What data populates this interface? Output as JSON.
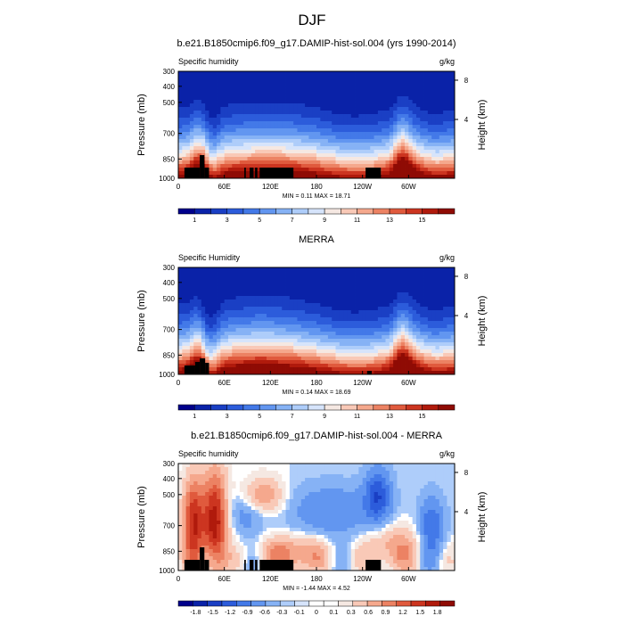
{
  "figure": {
    "title": "DJF"
  },
  "chart_data": [
    {
      "type": "heatmap",
      "title": "b.e21.B1850cmip6.f09_g17.DAMIP-hist-sol.004 (yrs 1990-2014)",
      "left_string": "Specific humidity",
      "right_string": "g/kg",
      "ylabel": "Pressure (mb)",
      "y2label": "Height (km)",
      "x_ticks": [
        "0",
        "60E",
        "120E",
        "180",
        "120W",
        "60W"
      ],
      "y_ticks": [
        "300",
        "400",
        "500",
        "700",
        "850",
        "1000"
      ],
      "y2_ticks": [
        "8",
        "4"
      ],
      "stats": "MIN =   0.11   MAX =  18.71",
      "colorbar_labels": [
        "1",
        "3",
        "5",
        "7",
        "9",
        "11",
        "13",
        "15"
      ],
      "palette": [
        "#00008b",
        "#0a22a8",
        "#1a3fc4",
        "#2c5cdb",
        "#4379e8",
        "#6296f0",
        "#86b2f5",
        "#aecdfa",
        "#d6e4fb",
        "#f5e8e2",
        "#f9c9b7",
        "#f5a88d",
        "#ec8263",
        "#e05a3d",
        "#cc3520",
        "#b01a0c",
        "#8f0b04"
      ],
      "variant": "mean1"
    },
    {
      "type": "heatmap",
      "title": "MERRA",
      "left_string": "Specific Humidity",
      "right_string": "g/kg",
      "ylabel": "Pressure (mb)",
      "y2label": "Height (km)",
      "x_ticks": [
        "0",
        "60E",
        "120E",
        "180",
        "120W",
        "60W"
      ],
      "y_ticks": [
        "300",
        "400",
        "500",
        "700",
        "850",
        "1000"
      ],
      "y2_ticks": [
        "8",
        "4"
      ],
      "stats": "MIN =   0.14   MAX =  18.69",
      "colorbar_labels": [
        "1",
        "3",
        "5",
        "7",
        "9",
        "11",
        "13",
        "15"
      ],
      "palette": [
        "#00008b",
        "#0a22a8",
        "#1a3fc4",
        "#2c5cdb",
        "#4379e8",
        "#6296f0",
        "#86b2f5",
        "#aecdfa",
        "#d6e4fb",
        "#f5e8e2",
        "#f9c9b7",
        "#f5a88d",
        "#ec8263",
        "#e05a3d",
        "#cc3520",
        "#b01a0c",
        "#8f0b04"
      ],
      "variant": "mean2"
    },
    {
      "type": "heatmap",
      "title": "b.e21.B1850cmip6.f09_g17.DAMIP-hist-sol.004 - MERRA",
      "left_string": "Specific humidity",
      "right_string": "g/kg",
      "ylabel": "Pressure (mb)",
      "y2label": "Height (km)",
      "x_ticks": [
        "0",
        "60E",
        "120E",
        "180",
        "120W",
        "60W"
      ],
      "y_ticks": [
        "300",
        "400",
        "500",
        "700",
        "850",
        "1000"
      ],
      "y2_ticks": [
        "8",
        "4"
      ],
      "stats": "MIN =  -1.44   MAX =   4.52",
      "colorbar_labels": [
        "-1.8",
        "-1.5",
        "-1.2",
        "-0.9",
        "-0.6",
        "-0.3",
        "-0.1",
        "0",
        "0.1",
        "0.3",
        "0.6",
        "0.9",
        "1.2",
        "1.5",
        "1.8"
      ],
      "palette": [
        "#00008b",
        "#0a22a8",
        "#1a3fc4",
        "#2c5cdb",
        "#4379e8",
        "#6296f0",
        "#86b2f5",
        "#aecdfa",
        "#d6e4fb",
        "#ffffff",
        "#ffffff",
        "#f5e8e2",
        "#f9c9b7",
        "#f5a88d",
        "#ec8263",
        "#e05a3d",
        "#cc3520",
        "#b01a0c",
        "#8f0b04"
      ],
      "variant": "diff"
    }
  ]
}
